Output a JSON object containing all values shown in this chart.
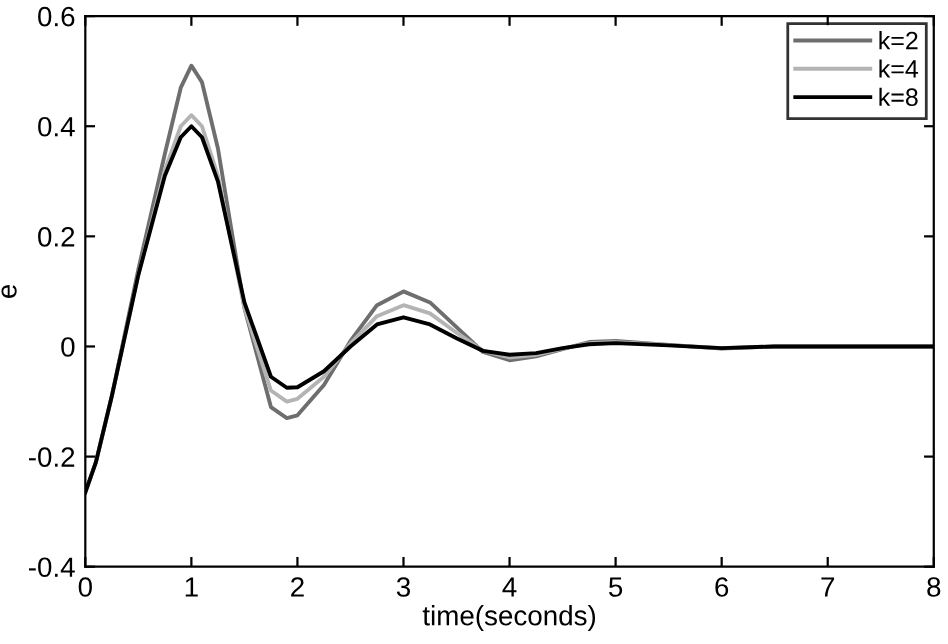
{
  "chart_data": {
    "type": "line",
    "xlabel": "time(seconds)",
    "ylabel": "e",
    "x": [
      0,
      0.1,
      0.25,
      0.5,
      0.75,
      0.9,
      1.0,
      1.1,
      1.25,
      1.5,
      1.75,
      1.9,
      2.0,
      2.25,
      2.5,
      2.75,
      3.0,
      3.25,
      3.5,
      3.75,
      4.0,
      4.25,
      4.5,
      4.75,
      5.0,
      5.5,
      6,
      6.5,
      7,
      8
    ],
    "series": [
      {
        "name": "k=2",
        "color": "#6e6e6e",
        "values": [
          -0.265,
          -0.21,
          -0.09,
          0.14,
          0.35,
          0.47,
          0.51,
          0.48,
          0.36,
          0.07,
          -0.11,
          -0.13,
          -0.125,
          -0.07,
          0.01,
          0.075,
          0.1,
          0.08,
          0.035,
          -0.01,
          -0.025,
          -0.018,
          -0.005,
          0.008,
          0.01,
          0.003,
          -0.004,
          0,
          0,
          0
        ]
      },
      {
        "name": "k=4",
        "color": "#b4b4b4",
        "values": [
          -0.265,
          -0.21,
          -0.09,
          0.13,
          0.32,
          0.4,
          0.42,
          0.4,
          0.31,
          0.07,
          -0.08,
          -0.1,
          -0.095,
          -0.055,
          0.005,
          0.055,
          0.075,
          0.06,
          0.025,
          -0.008,
          -0.02,
          -0.015,
          -0.004,
          0.006,
          0.008,
          0.003,
          -0.003,
          0,
          0,
          0
        ]
      },
      {
        "name": "k=8",
        "color": "#000000",
        "values": [
          -0.265,
          -0.21,
          -0.09,
          0.13,
          0.31,
          0.38,
          0.4,
          0.38,
          0.3,
          0.08,
          -0.055,
          -0.075,
          -0.074,
          -0.045,
          0.0,
          0.04,
          0.053,
          0.04,
          0.015,
          -0.008,
          -0.015,
          -0.012,
          -0.003,
          0.004,
          0.006,
          0.002,
          -0.003,
          0,
          0,
          0
        ]
      }
    ],
    "xlim": [
      0,
      8
    ],
    "ylim": [
      -0.4,
      0.6
    ],
    "xticks": [
      0,
      1,
      2,
      3,
      4,
      5,
      6,
      7,
      8
    ],
    "yticks": [
      -0.4,
      -0.2,
      0,
      0.2,
      0.4,
      0.6
    ],
    "grid": false,
    "legend": "top right",
    "line_style": "solid",
    "marker": "none"
  }
}
